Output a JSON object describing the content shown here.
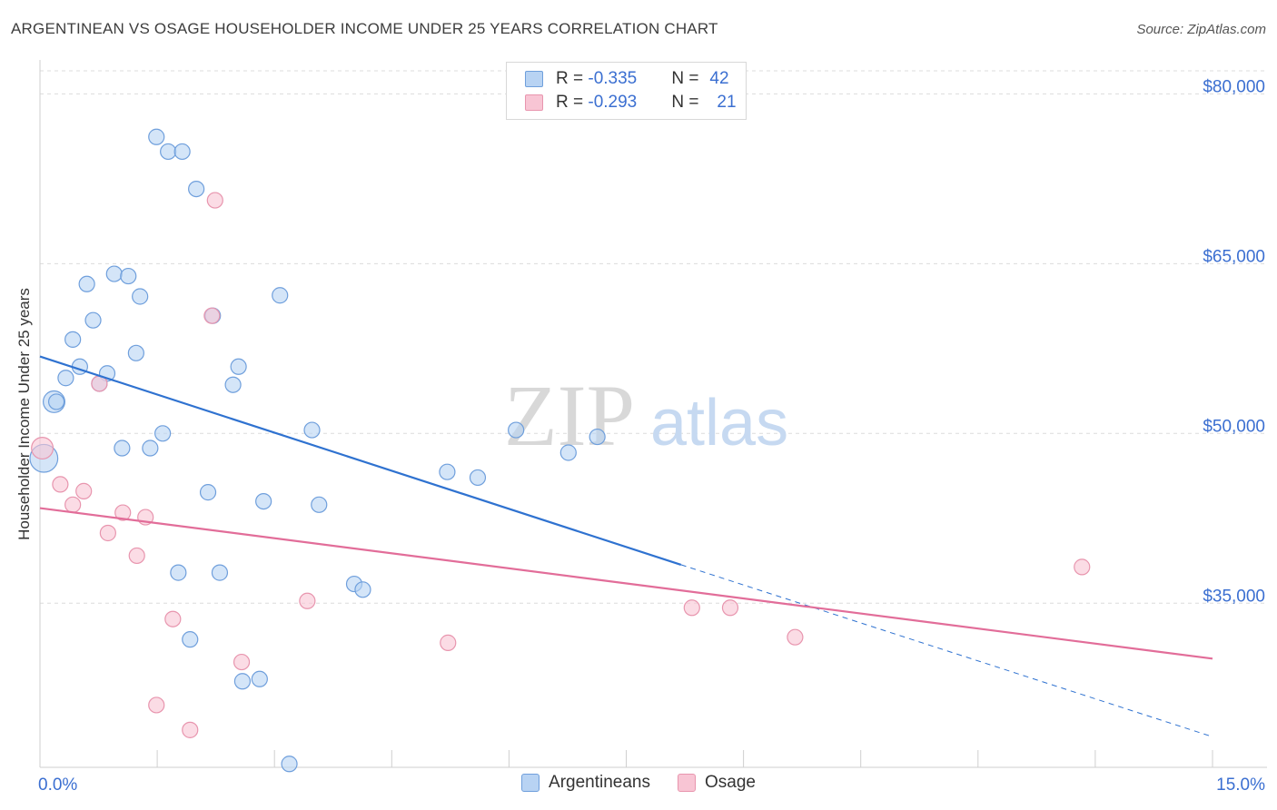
{
  "title": "ARGENTINEAN VS OSAGE HOUSEHOLDER INCOME UNDER 25 YEARS CORRELATION CHART",
  "source": "Source: ZipAtlas.com",
  "watermark": {
    "part1": "ZIP",
    "part2": "atlas"
  },
  "legend": {
    "rows": [
      {
        "r_label": "R = ",
        "r_value": "-0.335",
        "n_label": "N = ",
        "n_value": "42"
      },
      {
        "r_label": "R = ",
        "r_value": "-0.293",
        "n_label": "N = ",
        "n_value": "21"
      }
    ]
  },
  "bottom_legend": {
    "items": [
      "Argentineans",
      "Osage"
    ]
  },
  "chart_data": {
    "type": "scatter",
    "ylabel": "Householder Income Under 25 years",
    "xlabel": "",
    "xlim": [
      0,
      15
    ],
    "ylim": [
      20500,
      83000
    ],
    "x_tick_labels": [
      "0.0%",
      "15.0%"
    ],
    "y_ticks": [
      {
        "value": 80000,
        "label": "$80,000"
      },
      {
        "value": 65000,
        "label": "$65,000"
      },
      {
        "value": 50000,
        "label": "$50,000"
      },
      {
        "value": 35000,
        "label": "$35,000"
      }
    ],
    "colors": {
      "argentineans_fill": "#b8d3f3",
      "argentineans_stroke": "#6f9fdc",
      "argentineans_line": "#2f72d0",
      "osage_fill": "#f8c5d4",
      "osage_stroke": "#e895ae",
      "osage_line": "#e26d99",
      "tick_label": "#3b6fd1",
      "grid": "#dcdcdc"
    },
    "series": [
      {
        "name": "Argentineans",
        "points": [
          {
            "x": 1.49,
            "y": 76200,
            "s": 1
          },
          {
            "x": 1.64,
            "y": 74900,
            "s": 1
          },
          {
            "x": 1.82,
            "y": 74900,
            "s": 1
          },
          {
            "x": 2.0,
            "y": 71600,
            "s": 1
          },
          {
            "x": 0.95,
            "y": 64100,
            "s": 1
          },
          {
            "x": 1.13,
            "y": 63900,
            "s": 1
          },
          {
            "x": 0.6,
            "y": 63200,
            "s": 1
          },
          {
            "x": 1.28,
            "y": 62100,
            "s": 1
          },
          {
            "x": 3.07,
            "y": 62200,
            "s": 1
          },
          {
            "x": 0.68,
            "y": 60000,
            "s": 1
          },
          {
            "x": 2.21,
            "y": 60400,
            "s": 1
          },
          {
            "x": 0.42,
            "y": 58300,
            "s": 1
          },
          {
            "x": 1.23,
            "y": 57100,
            "s": 1
          },
          {
            "x": 0.51,
            "y": 55900,
            "s": 1
          },
          {
            "x": 2.54,
            "y": 55900,
            "s": 1
          },
          {
            "x": 0.33,
            "y": 54900,
            "s": 1
          },
          {
            "x": 0.86,
            "y": 55300,
            "s": 1
          },
          {
            "x": 0.76,
            "y": 54400,
            "s": 1
          },
          {
            "x": 2.47,
            "y": 54300,
            "s": 1
          },
          {
            "x": 0.18,
            "y": 52800,
            "s": 1.4
          },
          {
            "x": 0.21,
            "y": 52800,
            "s": 1
          },
          {
            "x": 3.48,
            "y": 50300,
            "s": 1
          },
          {
            "x": 1.57,
            "y": 50000,
            "s": 1
          },
          {
            "x": 6.09,
            "y": 50300,
            "s": 1
          },
          {
            "x": 7.13,
            "y": 49700,
            "s": 1
          },
          {
            "x": 1.05,
            "y": 48700,
            "s": 1
          },
          {
            "x": 1.41,
            "y": 48700,
            "s": 1
          },
          {
            "x": 6.76,
            "y": 48300,
            "s": 1
          },
          {
            "x": 0.05,
            "y": 47800,
            "s": 1.8
          },
          {
            "x": 5.21,
            "y": 46600,
            "s": 1
          },
          {
            "x": 5.6,
            "y": 46100,
            "s": 1
          },
          {
            "x": 2.15,
            "y": 44800,
            "s": 1
          },
          {
            "x": 2.86,
            "y": 44000,
            "s": 1
          },
          {
            "x": 3.57,
            "y": 43700,
            "s": 1
          },
          {
            "x": 1.77,
            "y": 37700,
            "s": 1
          },
          {
            "x": 2.3,
            "y": 37700,
            "s": 1
          },
          {
            "x": 4.02,
            "y": 36700,
            "s": 1
          },
          {
            "x": 4.13,
            "y": 36200,
            "s": 1
          },
          {
            "x": 1.92,
            "y": 31800,
            "s": 1
          },
          {
            "x": 2.81,
            "y": 28300,
            "s": 1
          },
          {
            "x": 2.59,
            "y": 28100,
            "s": 1
          },
          {
            "x": 3.19,
            "y": 20800,
            "s": 1
          }
        ],
        "trend": {
          "x0": 0,
          "y0": 56800,
          "x1": 8.2,
          "y1": 38400,
          "x_end": 15,
          "y_end": 23200
        }
      },
      {
        "name": "Osage",
        "points": [
          {
            "x": 2.24,
            "y": 70600,
            "s": 1
          },
          {
            "x": 2.2,
            "y": 60400,
            "s": 1
          },
          {
            "x": 0.76,
            "y": 54400,
            "s": 1
          },
          {
            "x": 0.03,
            "y": 48700,
            "s": 1.4
          },
          {
            "x": 0.26,
            "y": 45500,
            "s": 1
          },
          {
            "x": 0.56,
            "y": 44900,
            "s": 1
          },
          {
            "x": 0.42,
            "y": 43700,
            "s": 1
          },
          {
            "x": 1.06,
            "y": 43000,
            "s": 1
          },
          {
            "x": 1.35,
            "y": 42600,
            "s": 1
          },
          {
            "x": 0.87,
            "y": 41200,
            "s": 1
          },
          {
            "x": 1.24,
            "y": 39200,
            "s": 1
          },
          {
            "x": 3.42,
            "y": 35200,
            "s": 1
          },
          {
            "x": 8.34,
            "y": 34600,
            "s": 1
          },
          {
            "x": 8.83,
            "y": 34600,
            "s": 1
          },
          {
            "x": 13.33,
            "y": 38200,
            "s": 1
          },
          {
            "x": 1.7,
            "y": 33600,
            "s": 1
          },
          {
            "x": 9.66,
            "y": 32000,
            "s": 1
          },
          {
            "x": 5.22,
            "y": 31500,
            "s": 1
          },
          {
            "x": 2.58,
            "y": 29800,
            "s": 1
          },
          {
            "x": 1.49,
            "y": 26000,
            "s": 1
          },
          {
            "x": 1.92,
            "y": 23800,
            "s": 1
          }
        ],
        "trend": {
          "x0": 0,
          "y0": 43400,
          "x1": 15,
          "y1": 30100
        }
      }
    ]
  }
}
